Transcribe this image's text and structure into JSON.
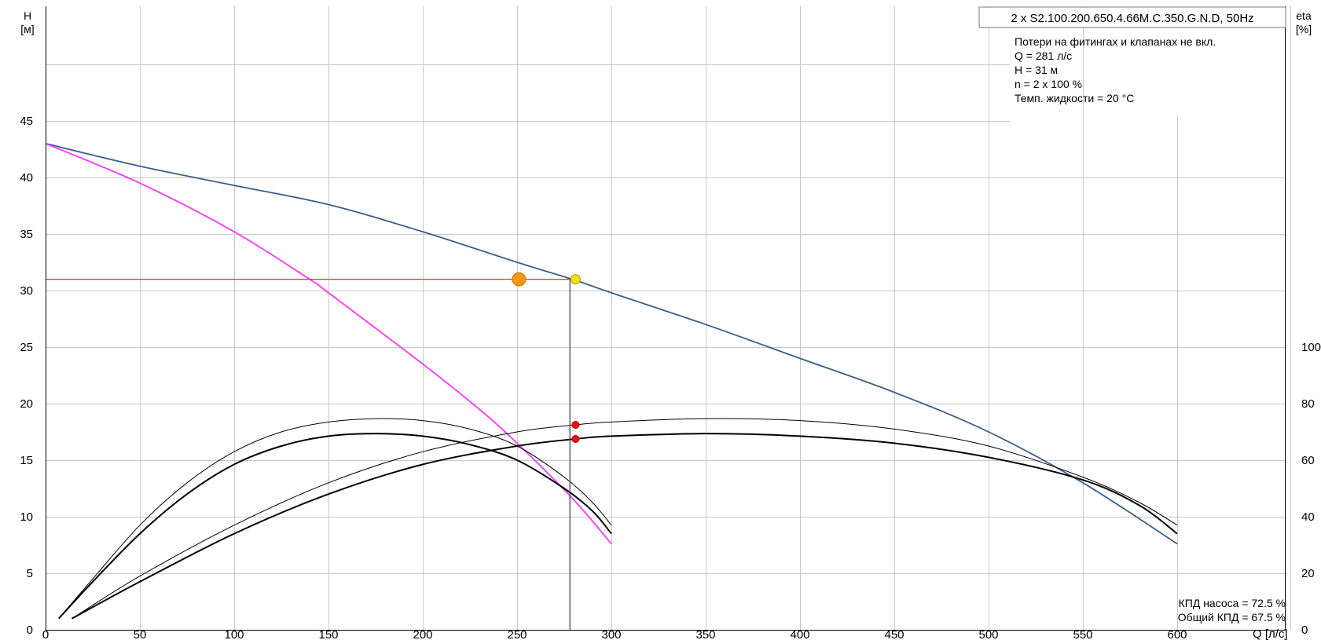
{
  "chart_data": {
    "type": "line",
    "title": "2 x S2.100.200.650.4.66M.C.350.G.N.D, 50Hz",
    "xlabel": "Q [л/с]",
    "ylabel_left": [
      "H",
      "[м]"
    ],
    "ylabel_right": [
      "eta",
      "[%]"
    ],
    "xlim": [
      0,
      660
    ],
    "ylim_left": [
      0,
      55
    ],
    "ylim_right": [
      0,
      220
    ],
    "x_ticks": [
      0,
      50,
      100,
      150,
      200,
      250,
      300,
      350,
      400,
      450,
      500,
      550,
      600
    ],
    "x_tick_labels": [
      "0",
      "50",
      "100",
      "150",
      "200",
      "250",
      "300",
      "350",
      "400",
      "450",
      "500",
      "550",
      "600"
    ],
    "y_ticks_left": [
      0,
      5,
      10,
      15,
      20,
      25,
      30,
      35,
      40,
      45
    ],
    "y_tick_labels_left": [
      "0",
      "5",
      "10",
      "15",
      "20",
      "25",
      "30",
      "35",
      "40",
      "45"
    ],
    "y_ticks_right": [
      0,
      20,
      40,
      60,
      80,
      100
    ],
    "y_tick_labels_right": [
      "0",
      "20",
      "40",
      "60",
      "80",
      "100"
    ],
    "grid": true,
    "info_lines": [
      "Потери на фитингах и клапанах не вкл.",
      "Q = 281 л/с",
      "H = 31 м",
      "n = 2 x 100 %",
      "Темп. жидкости = 20 °C"
    ],
    "efficiency_lines": [
      "КПД насоса = 72.5 %",
      "Общий КПД = 67.5 %"
    ],
    "series": [
      {
        "axis": "left",
        "color": "#3a5f8a",
        "width": 1.8,
        "points": [
          [
            0,
            43
          ],
          [
            50,
            41
          ],
          [
            100,
            39.3
          ],
          [
            150,
            37.6
          ],
          [
            200,
            35.2
          ],
          [
            250,
            32.5
          ],
          [
            281,
            30.9
          ],
          [
            300,
            29.8
          ],
          [
            350,
            27
          ],
          [
            400,
            24
          ],
          [
            450,
            21
          ],
          [
            500,
            17.5
          ],
          [
            550,
            13
          ],
          [
            600,
            7.6
          ]
        ]
      },
      {
        "axis": "left",
        "color": "#ff33ff",
        "width": 1.8,
        "points": [
          [
            0,
            43
          ],
          [
            50,
            39.5
          ],
          [
            100,
            35.2
          ],
          [
            140,
            31
          ],
          [
            150,
            29.8
          ],
          [
            200,
            23.5
          ],
          [
            230,
            19.5
          ],
          [
            250,
            16.5
          ],
          [
            280,
            11.5
          ],
          [
            300,
            7.6
          ]
        ]
      },
      {
        "axis": "right",
        "color": "#000000",
        "width": 1.0,
        "points": [
          [
            7,
            4
          ],
          [
            25,
            18
          ],
          [
            50,
            37
          ],
          [
            75,
            52
          ],
          [
            100,
            63
          ],
          [
            125,
            70
          ],
          [
            150,
            73.5
          ],
          [
            175,
            74.7
          ],
          [
            200,
            74
          ],
          [
            225,
            71
          ],
          [
            250,
            65
          ],
          [
            275,
            54
          ],
          [
            290,
            45
          ],
          [
            300,
            37
          ]
        ]
      },
      {
        "axis": "right",
        "color": "#000000",
        "width": 2.0,
        "points": [
          [
            7,
            4
          ],
          [
            25,
            17
          ],
          [
            50,
            34
          ],
          [
            75,
            48
          ],
          [
            100,
            58.5
          ],
          [
            125,
            65
          ],
          [
            150,
            68.5
          ],
          [
            175,
            69.4
          ],
          [
            200,
            68.5
          ],
          [
            225,
            65.5
          ],
          [
            250,
            60
          ],
          [
            275,
            50
          ],
          [
            290,
            42
          ],
          [
            300,
            34
          ]
        ]
      },
      {
        "axis": "right",
        "color": "#000000",
        "width": 1.0,
        "points": [
          [
            14,
            4
          ],
          [
            50,
            19
          ],
          [
            100,
            37
          ],
          [
            150,
            52
          ],
          [
            200,
            63
          ],
          [
            250,
            70
          ],
          [
            281,
            72.5
          ],
          [
            300,
            73.5
          ],
          [
            350,
            74.7
          ],
          [
            400,
            74
          ],
          [
            450,
            71
          ],
          [
            500,
            65
          ],
          [
            550,
            54
          ],
          [
            580,
            45
          ],
          [
            600,
            37
          ]
        ]
      },
      {
        "axis": "right",
        "color": "#000000",
        "width": 2.0,
        "points": [
          [
            14,
            4
          ],
          [
            50,
            17
          ],
          [
            100,
            34
          ],
          [
            150,
            48
          ],
          [
            200,
            58.5
          ],
          [
            250,
            65
          ],
          [
            281,
            67.5
          ],
          [
            300,
            68.5
          ],
          [
            350,
            69.4
          ],
          [
            400,
            68.5
          ],
          [
            450,
            66
          ],
          [
            500,
            61
          ],
          [
            550,
            53
          ],
          [
            580,
            44
          ],
          [
            600,
            34
          ]
        ]
      }
    ],
    "operating_lines": [
      {
        "type": "horizontal",
        "axis": "left",
        "y": 31,
        "x_from": 0,
        "x_to": 281,
        "color": "#e03030"
      },
      {
        "type": "vertical",
        "x": 278,
        "y_from": 0,
        "y_to": 31,
        "axis": "left",
        "color": "#404040"
      }
    ],
    "markers": [
      {
        "axis": "left",
        "x": 251,
        "y": 31,
        "r": 8.5,
        "fill": "#f39a12",
        "stroke": "#c77a00"
      },
      {
        "axis": "left",
        "x": 281,
        "y": 31,
        "r": 6,
        "fill": "#f7e000",
        "stroke": "#b09a00"
      },
      {
        "axis": "right",
        "x": 281,
        "y": 72.5,
        "r": 4.5,
        "fill": "#ee1111",
        "stroke": "#b00000"
      },
      {
        "axis": "right",
        "x": 281,
        "y": 67.5,
        "r": 4.5,
        "fill": "#ee1111",
        "stroke": "#b00000"
      }
    ]
  }
}
